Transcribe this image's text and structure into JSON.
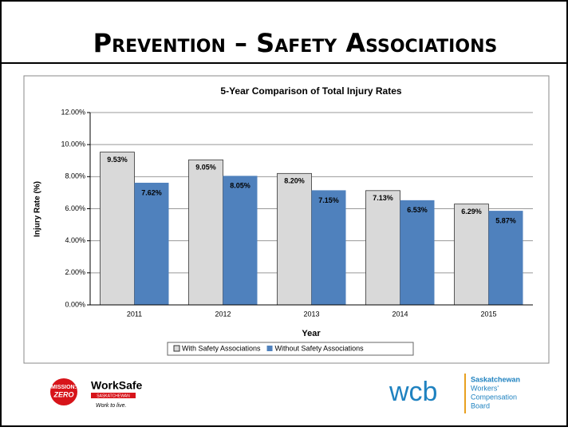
{
  "slide_title": "Prevention – Safety Associations",
  "chart_data": {
    "type": "bar",
    "title": "5-Year Comparison of Total Injury Rates",
    "x_label": "Year",
    "y_label": "Injury Rate (%)",
    "categories": [
      "2011",
      "2012",
      "2013",
      "2014",
      "2015"
    ],
    "series": [
      {
        "name": "With Safety Associations",
        "color": "#d9d9d9",
        "values": [
          9.53,
          9.05,
          8.2,
          7.13,
          6.29
        ],
        "value_labels": [
          "9.53%",
          "9.05%",
          "8.20%",
          "7.13%",
          "6.29%"
        ]
      },
      {
        "name": "Without Safety Associations",
        "color": "#4f81bd",
        "values": [
          7.62,
          8.05,
          7.15,
          6.53,
          5.87
        ],
        "value_labels": [
          "7.62%",
          "8.05%",
          "7.15%",
          "6.53%",
          "5.87%"
        ]
      }
    ],
    "ylim": [
      0,
      12
    ],
    "yticks": [
      {
        "value": 0,
        "label": "0.00%"
      },
      {
        "value": 2,
        "label": "2.00%"
      },
      {
        "value": 4,
        "label": "4.00%"
      },
      {
        "value": 6,
        "label": "6.00%"
      },
      {
        "value": 8,
        "label": "8.00%"
      },
      {
        "value": 10,
        "label": "10.00%"
      },
      {
        "value": 12,
        "label": "12.00%"
      }
    ],
    "grid": true,
    "legend": "bottom"
  },
  "logos": {
    "mission_1": "MISSION:",
    "mission_2": "ZERO",
    "worksafe": "WorkSafe",
    "worksafe_sub": "SASKATCHEWAN",
    "worksafe_tag": "Work to live.",
    "wcb": "wcb",
    "wcb_1": "Saskatchewan",
    "wcb_2": "Workers'",
    "wcb_3": "Compensation",
    "wcb_4": "Board"
  }
}
